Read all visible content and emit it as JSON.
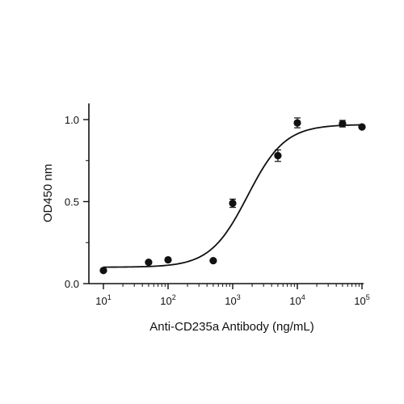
{
  "chart_data": {
    "type": "scatter",
    "title": "",
    "xlabel": "Anti-CD235a Antibody (ng/mL)",
    "ylabel": "OD450 nm",
    "x_scale": "log",
    "xlim": [
      10,
      100000
    ],
    "ylim": [
      0,
      1.0
    ],
    "x_ticks": [
      {
        "value": 10,
        "base": "10",
        "exp": "1"
      },
      {
        "value": 100,
        "base": "10",
        "exp": "2"
      },
      {
        "value": 1000,
        "base": "10",
        "exp": "3"
      },
      {
        "value": 10000,
        "base": "10",
        "exp": "4"
      },
      {
        "value": 100000,
        "base": "10",
        "exp": "5"
      }
    ],
    "y_ticks": [
      {
        "value": 0,
        "label": "0.0"
      },
      {
        "value": 0.5,
        "label": "0.5"
      },
      {
        "value": 1.0,
        "label": "1.0"
      }
    ],
    "grid": false,
    "legend": "none",
    "color": "#111111",
    "series": [
      {
        "points": [
          {
            "x": 10,
            "y": 0.08,
            "err": 0
          },
          {
            "x": 50,
            "y": 0.13,
            "err": 0
          },
          {
            "x": 100,
            "y": 0.145,
            "err": 0
          },
          {
            "x": 500,
            "y": 0.14,
            "err": 0
          },
          {
            "x": 1000,
            "y": 0.49,
            "err": 0.025
          },
          {
            "x": 5000,
            "y": 0.78,
            "err": 0.035
          },
          {
            "x": 10000,
            "y": 0.98,
            "err": 0.03
          },
          {
            "x": 50000,
            "y": 0.975,
            "err": 0.02
          },
          {
            "x": 100000,
            "y": 0.955,
            "err": 0
          }
        ]
      }
    ],
    "fit": {
      "model": "4PL",
      "bottom": 0.1,
      "top": 0.97,
      "ec50": 1700,
      "hill": 1.5
    }
  }
}
